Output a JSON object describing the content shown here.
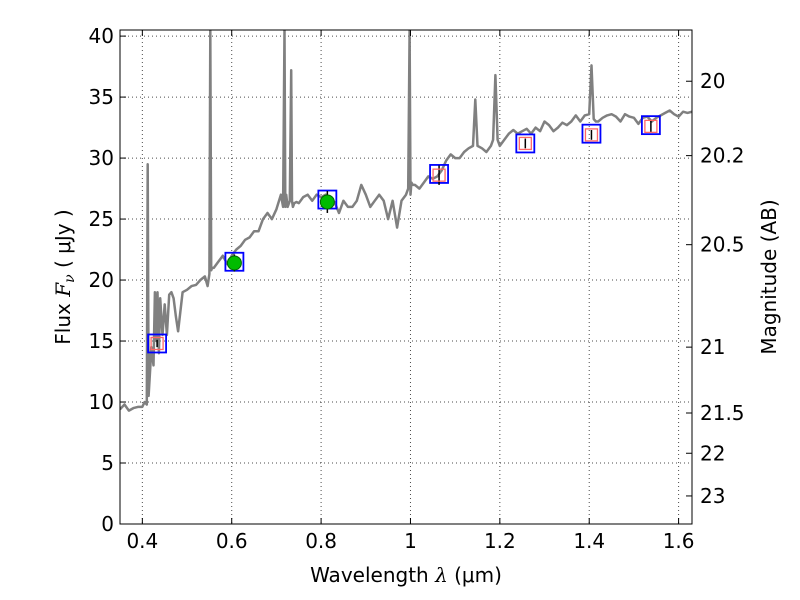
{
  "chart_data": {
    "type": "line",
    "title": "",
    "xlabel": {
      "main": "Wavelength ",
      "sym": "λ",
      "unit": " (μm)"
    },
    "ylabel": {
      "main": "Flux ",
      "sym": "F",
      "sub": "ν",
      "unit": " ( μJy )"
    },
    "y2label": "Magnitude (AB)",
    "xlim": [
      0.35,
      1.63
    ],
    "ylim": [
      0,
      40.5
    ],
    "grid": true,
    "xticks": [
      0.4,
      0.6,
      0.8,
      1.0,
      1.2,
      1.4,
      1.6
    ],
    "xtick_labels": [
      "0.4",
      "0.6",
      "0.8",
      "1",
      "1.2",
      "1.4",
      "1.6"
    ],
    "yticks": [
      0,
      5,
      10,
      15,
      20,
      25,
      30,
      35,
      40
    ],
    "ytick_labels": [
      "0",
      "5",
      "10",
      "15",
      "20",
      "25",
      "30",
      "35",
      "40"
    ],
    "y2ticks": [
      {
        "label": "20",
        "flux": 36.3
      },
      {
        "label": "20.2",
        "flux": 30.2
      },
      {
        "label": "20.5",
        "flux": 22.9
      },
      {
        "label": "21",
        "flux": 14.5
      },
      {
        "label": "21.5",
        "flux": 9.1
      },
      {
        "label": "22",
        "flux": 5.8
      },
      {
        "label": "23",
        "flux": 2.3
      }
    ],
    "colors": {
      "spectrum": "#808080",
      "model_box": "#0000ff",
      "obs_marker": "#ff6666",
      "green_point": "#00bb00",
      "errorbar": "#000000",
      "grid": "#000000"
    },
    "series": [
      {
        "kind": "spectrum",
        "x": [
          0.35,
          0.36,
          0.37,
          0.38,
          0.39,
          0.4,
          0.405,
          0.41,
          0.412,
          0.414,
          0.418,
          0.42,
          0.425,
          0.428,
          0.431,
          0.434,
          0.437,
          0.44,
          0.445,
          0.45,
          0.455,
          0.46,
          0.465,
          0.47,
          0.475,
          0.48,
          0.49,
          0.5,
          0.51,
          0.52,
          0.53,
          0.54,
          0.546,
          0.55,
          0.552,
          0.554,
          0.556,
          0.56,
          0.57,
          0.58,
          0.59,
          0.6,
          0.61,
          0.62,
          0.63,
          0.64,
          0.65,
          0.66,
          0.67,
          0.68,
          0.69,
          0.7,
          0.71,
          0.715,
          0.718,
          0.72,
          0.722,
          0.725,
          0.73,
          0.733,
          0.735,
          0.737,
          0.74,
          0.745,
          0.75,
          0.76,
          0.77,
          0.78,
          0.79,
          0.8,
          0.81,
          0.82,
          0.83,
          0.84,
          0.85,
          0.86,
          0.87,
          0.88,
          0.89,
          0.9,
          0.91,
          0.92,
          0.93,
          0.94,
          0.95,
          0.96,
          0.97,
          0.98,
          0.99,
          0.995,
          0.998,
          1.0,
          1.002,
          1.005,
          1.01,
          1.02,
          1.03,
          1.04,
          1.05,
          1.06,
          1.07,
          1.08,
          1.09,
          1.1,
          1.11,
          1.12,
          1.13,
          1.14,
          1.145,
          1.15,
          1.16,
          1.17,
          1.18,
          1.185,
          1.19,
          1.195,
          1.2,
          1.21,
          1.22,
          1.23,
          1.24,
          1.25,
          1.26,
          1.27,
          1.28,
          1.29,
          1.3,
          1.31,
          1.32,
          1.33,
          1.34,
          1.35,
          1.36,
          1.37,
          1.38,
          1.39,
          1.4,
          1.405,
          1.41,
          1.415,
          1.42,
          1.43,
          1.44,
          1.45,
          1.46,
          1.47,
          1.48,
          1.49,
          1.5,
          1.51,
          1.52,
          1.53,
          1.54,
          1.55,
          1.56,
          1.57,
          1.58,
          1.59,
          1.6,
          1.61,
          1.62,
          1.63
        ],
        "y": [
          9.4,
          9.8,
          9.3,
          9.5,
          9.6,
          9.6,
          10.0,
          9.8,
          29.5,
          10.5,
          13.0,
          14.5,
          13.0,
          19.0,
          15.0,
          19.0,
          14.0,
          18.5,
          15.5,
          18.0,
          15.5,
          18.8,
          19.0,
          18.5,
          17.0,
          15.8,
          19.0,
          19.2,
          19.5,
          19.6,
          20.0,
          20.3,
          19.5,
          20.5,
          40.5,
          20.8,
          21.0,
          21.0,
          21.5,
          22.0,
          21.3,
          22.0,
          22.5,
          22.8,
          23.3,
          23.5,
          24.0,
          24.0,
          25.0,
          25.5,
          25.0,
          25.8,
          27.0,
          26.0,
          40.5,
          26.0,
          27.0,
          26.0,
          26.5,
          37.2,
          26.5,
          26.0,
          26.3,
          26.4,
          26.3,
          26.8,
          27.0,
          26.5,
          27.0,
          26.8,
          27.0,
          26.5,
          26.4,
          25.5,
          26.5,
          26.0,
          26.0,
          26.5,
          27.8,
          27.0,
          26.0,
          26.5,
          27.0,
          26.5,
          25.0,
          26.5,
          24.3,
          26.5,
          27.0,
          27.5,
          40.5,
          27.0,
          28.0,
          27.8,
          27.8,
          27.5,
          28.0,
          28.5,
          28.3,
          28.5,
          29.0,
          29.8,
          30.3,
          30.0,
          30.0,
          30.5,
          30.8,
          31.0,
          34.8,
          31.0,
          30.8,
          30.5,
          31.0,
          31.5,
          36.8,
          31.5,
          31.0,
          31.5,
          32.0,
          32.3,
          32.0,
          32.2,
          32.4,
          32.0,
          32.5,
          32.2,
          33.0,
          32.7,
          32.2,
          32.5,
          32.9,
          32.7,
          33.0,
          33.5,
          33.0,
          33.5,
          33.6,
          37.6,
          33.2,
          33.0,
          33.0,
          33.3,
          33.5,
          33.6,
          33.4,
          33.0,
          33.6,
          33.4,
          33.3,
          32.8,
          33.3,
          33.4,
          33.0,
          33.3,
          33.5,
          33.7,
          33.9,
          33.6,
          33.4,
          33.8,
          33.7,
          33.8
        ]
      },
      {
        "kind": "photometry",
        "x": [
          0.433,
          0.606,
          0.814,
          1.064,
          1.257,
          1.405,
          1.538
        ],
        "model": [
          14.8,
          21.5,
          26.6,
          28.7,
          31.2,
          32.0,
          32.7
        ],
        "observed": [
          14.8,
          21.4,
          26.4,
          28.6,
          31.2,
          31.9,
          32.6
        ],
        "errors": [
          0.3,
          0.7,
          0.9,
          0.8,
          0.4,
          0.4,
          0.5
        ],
        "marker": [
          "square",
          "circle",
          "circle",
          "square",
          "square",
          "square",
          "square"
        ]
      }
    ]
  }
}
